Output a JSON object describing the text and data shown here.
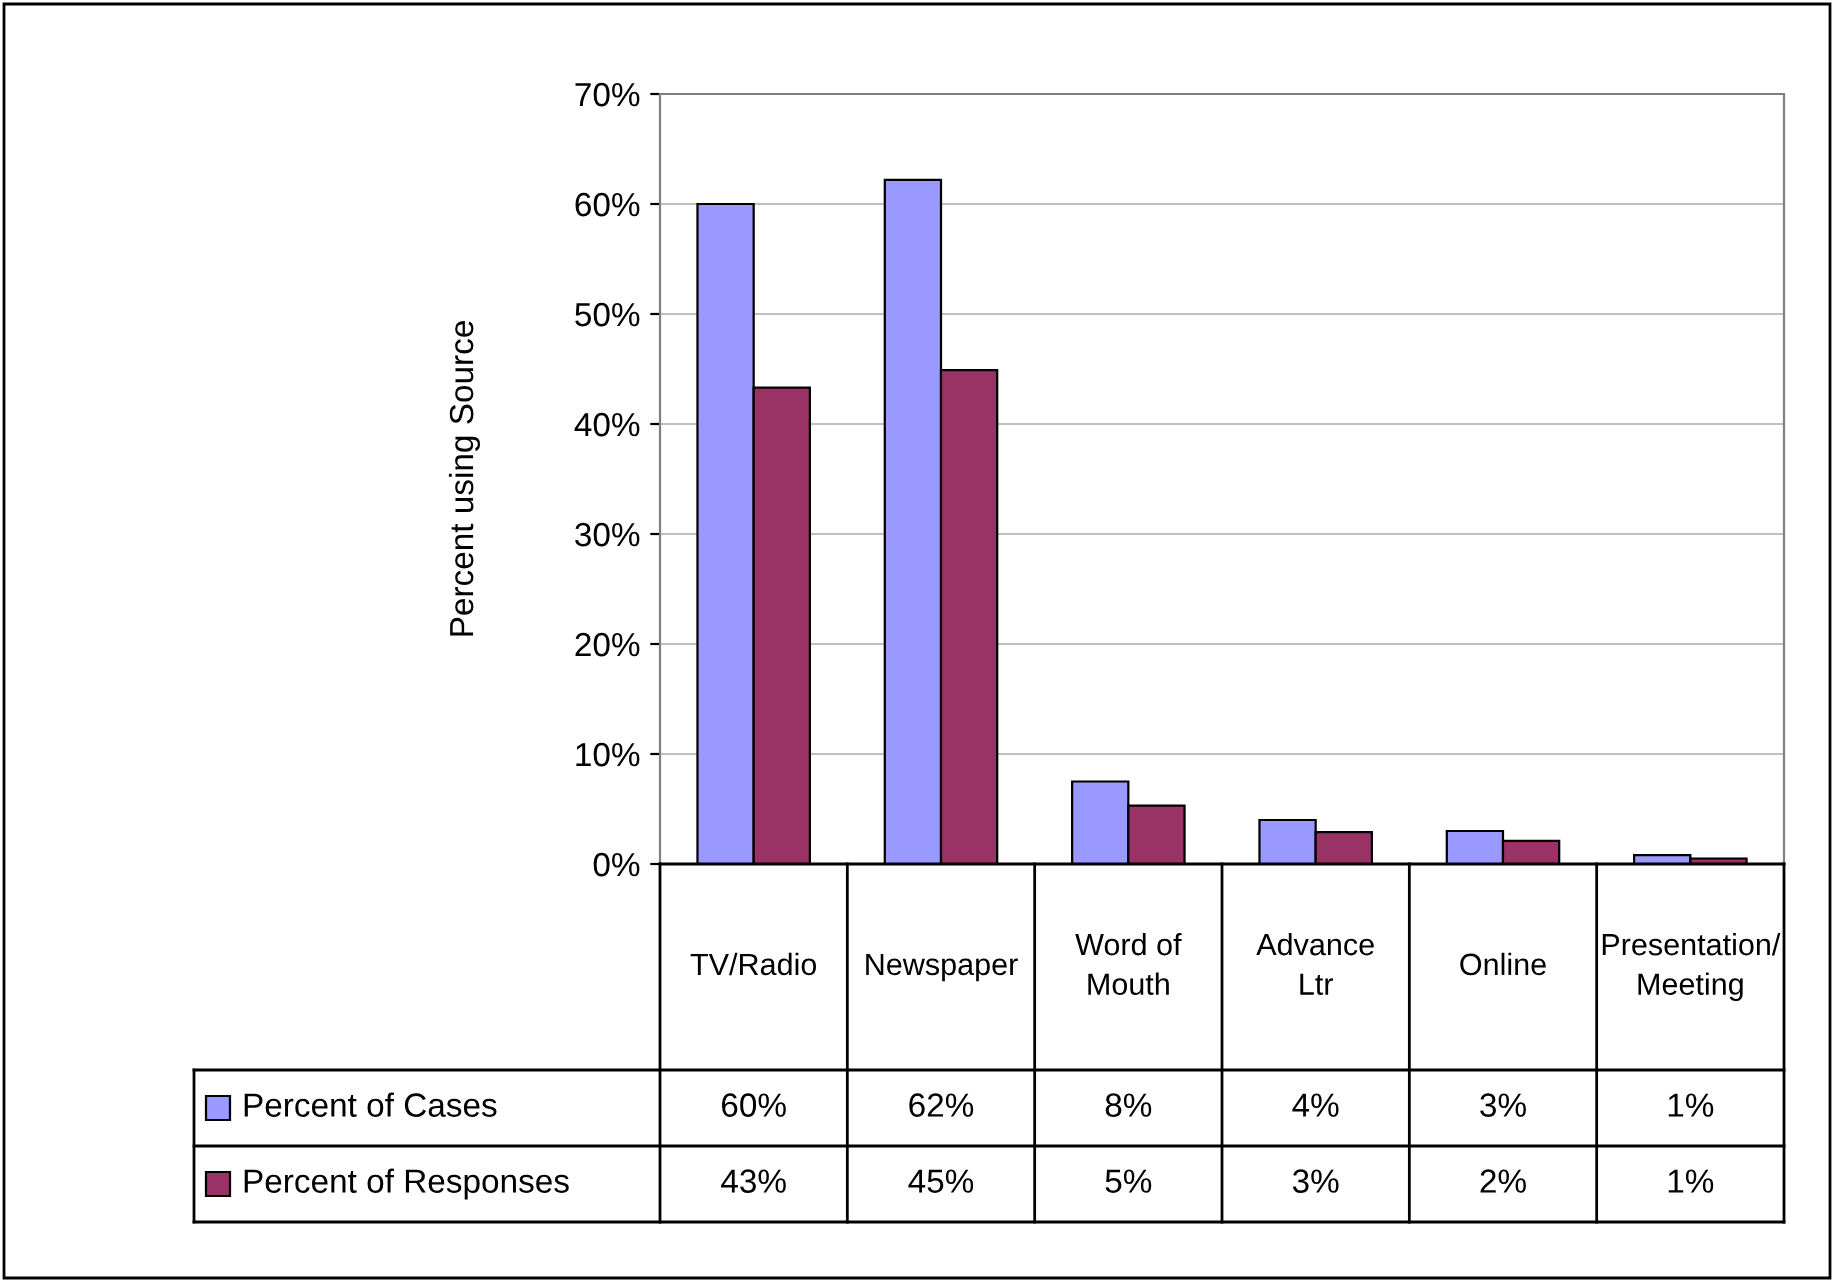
{
  "chart_data": {
    "type": "bar",
    "ylabel": "Percent using Source",
    "categories": [
      "TV/Radio",
      "Newspaper",
      "Word of\nMouth",
      "Advance\nLtr",
      "Online",
      "Presentation/\nMeeting"
    ],
    "series": [
      {
        "name": "Percent of Cases",
        "color": "#9999ff",
        "values": [
          60.0,
          62.2,
          7.5,
          4.0,
          3.0,
          0.8
        ],
        "value_labels": [
          "60%",
          "62%",
          "8%",
          "4%",
          "3%",
          "1%"
        ]
      },
      {
        "name": "Percent of Responses",
        "color": "#993366",
        "values": [
          43.3,
          44.9,
          5.3,
          2.9,
          2.1,
          0.5
        ],
        "value_labels": [
          "43%",
          "45%",
          "5%",
          "3%",
          "2%",
          "1%"
        ]
      }
    ],
    "ylim": [
      0,
      70
    ],
    "yticks": [
      {
        "value": 0,
        "label": "0%"
      },
      {
        "value": 10,
        "label": "10%"
      },
      {
        "value": 20,
        "label": "20%"
      },
      {
        "value": 30,
        "label": "30%"
      },
      {
        "value": 40,
        "label": "40%"
      },
      {
        "value": 50,
        "label": "50%"
      },
      {
        "value": 60,
        "label": "60%"
      },
      {
        "value": 70,
        "label": "70%"
      }
    ],
    "grid": "y",
    "legend": "bottom left"
  }
}
